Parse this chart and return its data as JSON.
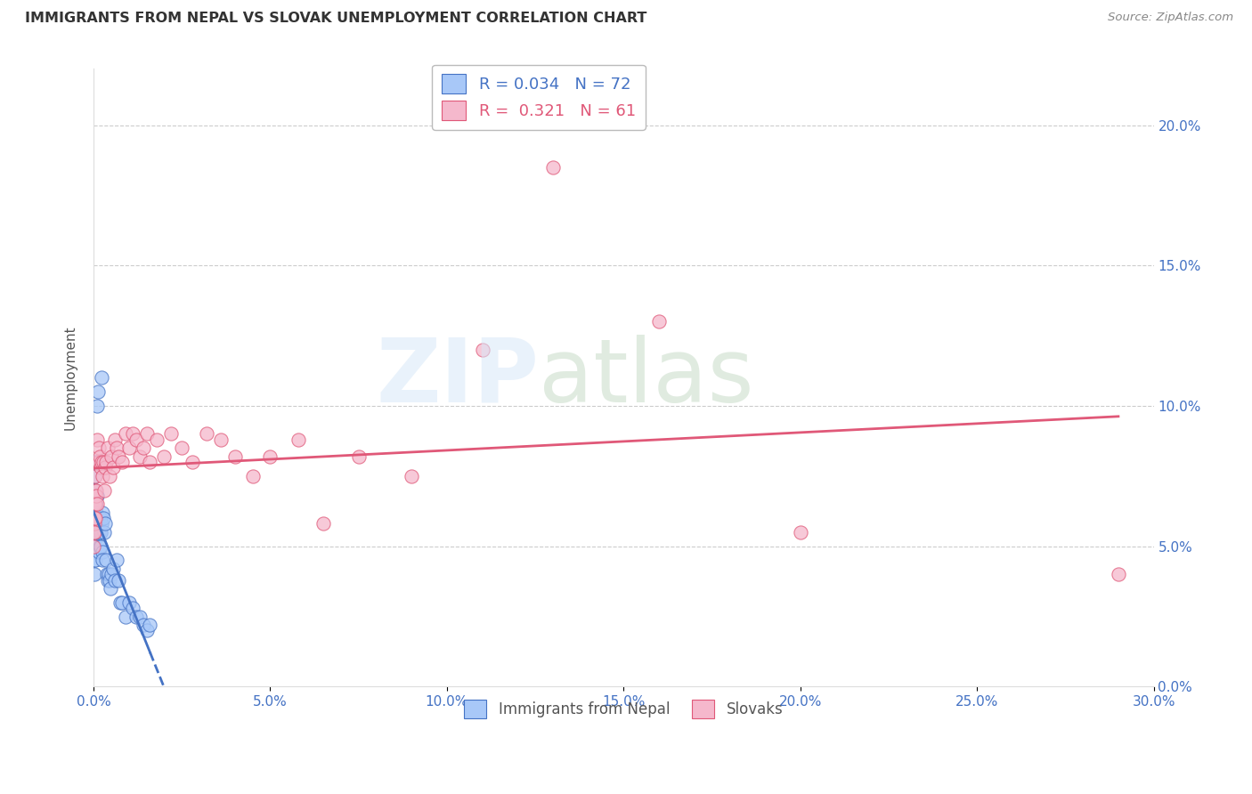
{
  "title": "IMMIGRANTS FROM NEPAL VS SLOVAK UNEMPLOYMENT CORRELATION CHART",
  "source": "Source: ZipAtlas.com",
  "ylabel": "Unemployment",
  "color_nepal": "#a8c8f8",
  "color_slovak": "#f5b8cc",
  "color_nepal_line": "#4472c4",
  "color_slovak_line": "#e05878",
  "legend_nepal_R": "0.034",
  "legend_nepal_N": "72",
  "legend_slovak_R": "0.321",
  "legend_slovak_N": "61",
  "legend_label_nepal": "Immigrants from Nepal",
  "legend_label_slovak": "Slovaks",
  "nepal_x": [
    0.0,
    0.0,
    0.0001,
    0.0001,
    0.0001,
    0.0001,
    0.0001,
    0.0002,
    0.0002,
    0.0002,
    0.0002,
    0.0002,
    0.0002,
    0.0003,
    0.0003,
    0.0003,
    0.0003,
    0.0003,
    0.0003,
    0.0004,
    0.0004,
    0.0004,
    0.0005,
    0.0005,
    0.0005,
    0.0006,
    0.0006,
    0.0007,
    0.0007,
    0.0008,
    0.0009,
    0.001,
    0.0011,
    0.0012,
    0.0013,
    0.0014,
    0.0015,
    0.0016,
    0.0017,
    0.0018,
    0.0019,
    0.002,
    0.0021,
    0.0022,
    0.0023,
    0.0024,
    0.0025,
    0.0026,
    0.0028,
    0.003,
    0.0032,
    0.0035,
    0.0038,
    0.004,
    0.0042,
    0.0045,
    0.0048,
    0.005,
    0.0055,
    0.006,
    0.0065,
    0.007,
    0.0075,
    0.008,
    0.009,
    0.01,
    0.011,
    0.012,
    0.013,
    0.014,
    0.015,
    0.016
  ],
  "nepal_y": [
    0.06,
    0.065,
    0.055,
    0.062,
    0.05,
    0.058,
    0.07,
    0.055,
    0.048,
    0.052,
    0.06,
    0.045,
    0.065,
    0.068,
    0.055,
    0.05,
    0.075,
    0.04,
    0.06,
    0.065,
    0.045,
    0.07,
    0.055,
    0.058,
    0.07,
    0.065,
    0.08,
    0.062,
    0.055,
    0.058,
    0.06,
    0.068,
    0.1,
    0.105,
    0.058,
    0.055,
    0.06,
    0.048,
    0.06,
    0.05,
    0.055,
    0.06,
    0.05,
    0.058,
    0.11,
    0.062,
    0.048,
    0.045,
    0.06,
    0.055,
    0.058,
    0.045,
    0.04,
    0.038,
    0.04,
    0.038,
    0.035,
    0.04,
    0.042,
    0.038,
    0.045,
    0.038,
    0.03,
    0.03,
    0.025,
    0.03,
    0.028,
    0.025,
    0.025,
    0.022,
    0.02,
    0.022
  ],
  "slovak_x": [
    0.0,
    0.0001,
    0.0001,
    0.0002,
    0.0002,
    0.0003,
    0.0003,
    0.0004,
    0.0005,
    0.0005,
    0.0006,
    0.0007,
    0.0008,
    0.0009,
    0.001,
    0.0012,
    0.0014,
    0.0016,
    0.0018,
    0.002,
    0.0023,
    0.0025,
    0.0028,
    0.003,
    0.0033,
    0.0036,
    0.004,
    0.0045,
    0.005,
    0.0055,
    0.006,
    0.0065,
    0.007,
    0.008,
    0.009,
    0.01,
    0.011,
    0.012,
    0.013,
    0.014,
    0.015,
    0.016,
    0.018,
    0.02,
    0.022,
    0.025,
    0.028,
    0.032,
    0.036,
    0.04,
    0.045,
    0.05,
    0.058,
    0.065,
    0.075,
    0.09,
    0.11,
    0.13,
    0.16,
    0.2,
    0.29
  ],
  "slovak_y": [
    0.06,
    0.055,
    0.05,
    0.058,
    0.06,
    0.055,
    0.065,
    0.06,
    0.07,
    0.065,
    0.075,
    0.07,
    0.068,
    0.065,
    0.088,
    0.08,
    0.085,
    0.08,
    0.082,
    0.078,
    0.08,
    0.075,
    0.08,
    0.07,
    0.078,
    0.08,
    0.085,
    0.075,
    0.082,
    0.078,
    0.088,
    0.085,
    0.082,
    0.08,
    0.09,
    0.085,
    0.09,
    0.088,
    0.082,
    0.085,
    0.09,
    0.08,
    0.088,
    0.082,
    0.09,
    0.085,
    0.08,
    0.09,
    0.088,
    0.082,
    0.075,
    0.082,
    0.088,
    0.058,
    0.082,
    0.075,
    0.12,
    0.185,
    0.13,
    0.055,
    0.04
  ],
  "xlim": [
    0.0,
    0.3
  ],
  "ylim": [
    0.0,
    0.22
  ],
  "xticks": [
    0.0,
    0.05,
    0.1,
    0.15,
    0.2,
    0.25,
    0.3
  ],
  "yticks": [
    0.0,
    0.05,
    0.1,
    0.15,
    0.2
  ]
}
